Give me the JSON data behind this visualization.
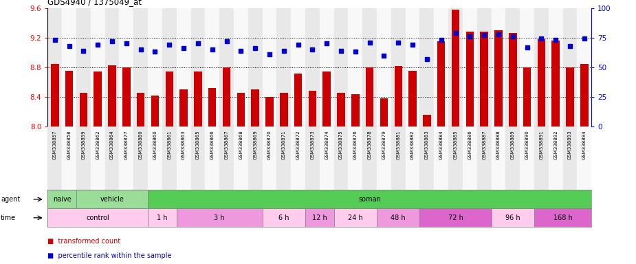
{
  "title": "GDS4940 / 1375049_at",
  "samples": [
    "GSM338857",
    "GSM338858",
    "GSM338859",
    "GSM338862",
    "GSM338864",
    "GSM338877",
    "GSM338880",
    "GSM338860",
    "GSM338861",
    "GSM338863",
    "GSM338865",
    "GSM338866",
    "GSM338867",
    "GSM338868",
    "GSM338869",
    "GSM338870",
    "GSM338871",
    "GSM338872",
    "GSM338873",
    "GSM338874",
    "GSM338875",
    "GSM338876",
    "GSM338878",
    "GSM338879",
    "GSM338881",
    "GSM338882",
    "GSM338883",
    "GSM338884",
    "GSM338885",
    "GSM338886",
    "GSM338887",
    "GSM338888",
    "GSM338889",
    "GSM338890",
    "GSM338891",
    "GSM338892",
    "GSM338893",
    "GSM338894"
  ],
  "bar_values": [
    8.85,
    8.75,
    8.46,
    8.74,
    8.83,
    8.8,
    8.46,
    8.42,
    8.74,
    8.5,
    8.74,
    8.52,
    8.8,
    8.46,
    8.5,
    8.4,
    8.46,
    8.72,
    8.48,
    8.74,
    8.46,
    8.44,
    8.8,
    8.38,
    8.82,
    8.75,
    8.16,
    9.15,
    9.58,
    9.28,
    9.28,
    9.3,
    9.26,
    8.8,
    9.18,
    9.16,
    8.8,
    8.85
  ],
  "percentile_values": [
    73,
    68,
    64,
    69,
    72,
    70,
    65,
    63,
    69,
    66,
    70,
    65,
    72,
    64,
    66,
    61,
    64,
    69,
    65,
    70,
    64,
    63,
    71,
    60,
    71,
    69,
    57,
    73,
    79,
    76,
    77,
    78,
    76,
    67,
    74,
    73,
    68,
    74
  ],
  "ylim_left": [
    8.0,
    9.6
  ],
  "ylim_right": [
    0,
    100
  ],
  "yticks_left": [
    8.0,
    8.4,
    8.8,
    9.2,
    9.6
  ],
  "yticks_right": [
    0,
    25,
    50,
    75,
    100
  ],
  "bar_color": "#cc0000",
  "dot_color": "#0000cc",
  "grid_yticks": [
    8.4,
    8.8,
    9.2
  ],
  "agent_spans": [
    {
      "label": "naive",
      "start": 0,
      "end": 1,
      "color": "#99dd99"
    },
    {
      "label": "vehicle",
      "start": 2,
      "end": 6,
      "color": "#99dd99"
    },
    {
      "label": "soman",
      "start": 7,
      "end": 37,
      "color": "#55cc55"
    }
  ],
  "time_spans": [
    {
      "label": "control",
      "start": 0,
      "end": 6,
      "color": "#ffccee"
    },
    {
      "label": "1 h",
      "start": 7,
      "end": 8,
      "color": "#ffccee"
    },
    {
      "label": "3 h",
      "start": 9,
      "end": 14,
      "color": "#ee99dd"
    },
    {
      "label": "6 h",
      "start": 15,
      "end": 17,
      "color": "#ffccee"
    },
    {
      "label": "12 h",
      "start": 18,
      "end": 19,
      "color": "#ee99dd"
    },
    {
      "label": "24 h",
      "start": 20,
      "end": 22,
      "color": "#ffccee"
    },
    {
      "label": "48 h",
      "start": 23,
      "end": 25,
      "color": "#ee99dd"
    },
    {
      "label": "72 h",
      "start": 26,
      "end": 30,
      "color": "#dd66cc"
    },
    {
      "label": "96 h",
      "start": 31,
      "end": 33,
      "color": "#ffccee"
    },
    {
      "label": "168 h",
      "start": 34,
      "end": 37,
      "color": "#dd66cc"
    }
  ],
  "xticklabel_bg_even": "#e8e8e8",
  "xticklabel_bg_odd": "#f8f8f8"
}
